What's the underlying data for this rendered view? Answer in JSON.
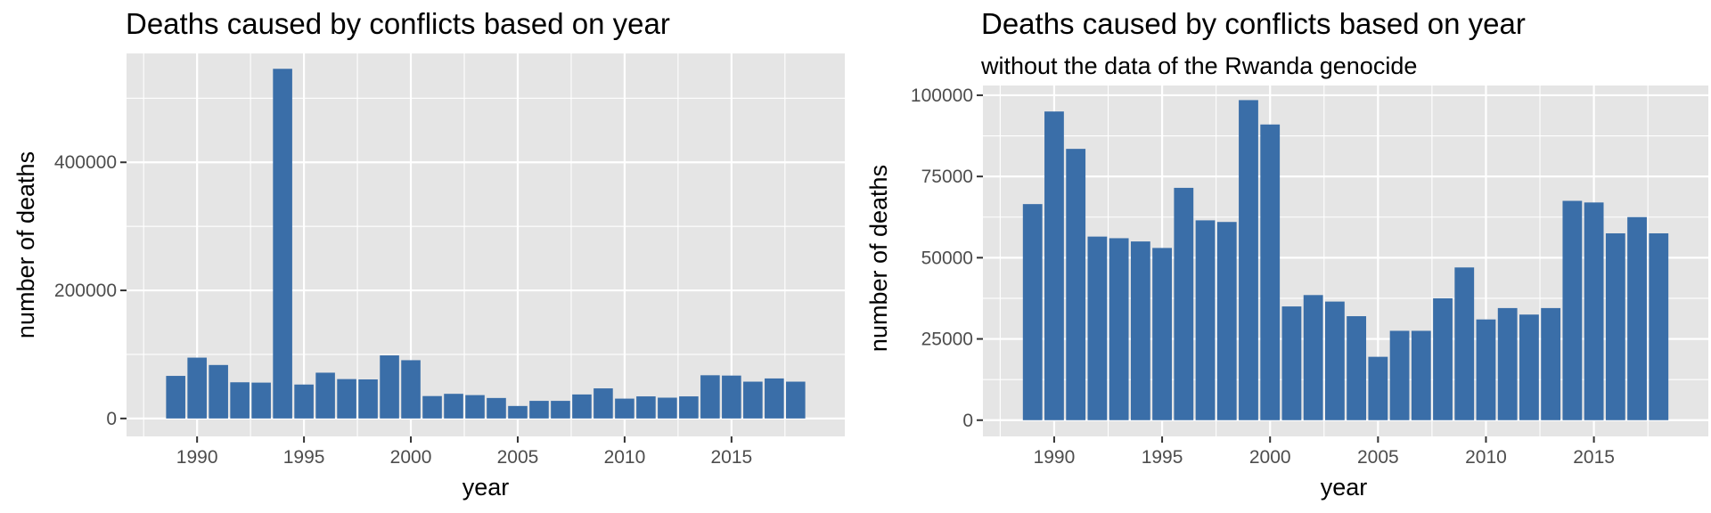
{
  "chart_data": [
    {
      "type": "bar",
      "title": "Deaths caused by conflicts based on year",
      "subtitle": "",
      "xlabel": "year",
      "ylabel": "number of deaths",
      "x": [
        1989,
        1990,
        1991,
        1992,
        1993,
        1994,
        1995,
        1996,
        1997,
        1998,
        1999,
        2000,
        2001,
        2002,
        2003,
        2004,
        2005,
        2006,
        2007,
        2008,
        2009,
        2010,
        2011,
        2012,
        2013,
        2014,
        2015,
        2016,
        2017,
        2018
      ],
      "values": [
        66500,
        95000,
        83500,
        56500,
        56000,
        546000,
        53000,
        71500,
        61500,
        61000,
        98500,
        91000,
        35000,
        38500,
        36500,
        32000,
        19500,
        27500,
        27500,
        37500,
        47000,
        31000,
        34500,
        32500,
        34500,
        67500,
        67000,
        57500,
        62500,
        57500
      ],
      "xlim": [
        1986.7,
        1990.0
      ],
      "x_ticks": [
        1990,
        1995,
        2000,
        2005,
        2010,
        2015
      ],
      "ylim": [
        -28000,
        570000
      ],
      "y_ticks": [
        0,
        200000,
        400000
      ],
      "y_tick_labels": [
        "0",
        "200000",
        "400000"
      ],
      "bar_color": "#3a6ea8",
      "panel_color": "#e5e5e5",
      "grid": true
    },
    {
      "type": "bar",
      "title": "Deaths caused by conflicts based on year",
      "subtitle": "without the data of the Rwanda genocide",
      "xlabel": "year",
      "ylabel": "number of deaths",
      "x": [
        1989,
        1990,
        1991,
        1992,
        1993,
        1994,
        1995,
        1996,
        1997,
        1998,
        1999,
        2000,
        2001,
        2002,
        2003,
        2004,
        2005,
        2006,
        2007,
        2008,
        2009,
        2010,
        2011,
        2012,
        2013,
        2014,
        2015,
        2016,
        2017,
        2018
      ],
      "values": [
        66500,
        95000,
        83500,
        56500,
        56000,
        55000,
        53000,
        71500,
        61500,
        61000,
        98500,
        91000,
        35000,
        38500,
        36500,
        32000,
        19500,
        27500,
        27500,
        37500,
        47000,
        31000,
        34500,
        32500,
        34500,
        67500,
        67000,
        57500,
        62500,
        57500
      ],
      "xlim": [
        1986.7,
        1990.0
      ],
      "x_ticks": [
        1990,
        1995,
        2000,
        2005,
        2010,
        2015
      ],
      "ylim": [
        -5000,
        103000
      ],
      "y_ticks": [
        0,
        25000,
        50000,
        75000,
        100000
      ],
      "y_tick_labels": [
        "0",
        "25000",
        "50000",
        "75000",
        "100000"
      ],
      "bar_color": "#3a6ea8",
      "panel_color": "#e5e5e5",
      "grid": true
    }
  ]
}
